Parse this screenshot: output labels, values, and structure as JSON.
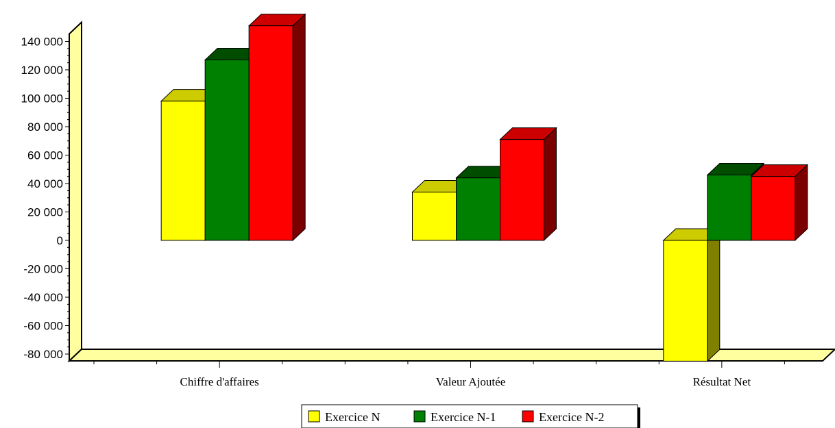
{
  "chart_data": {
    "type": "bar",
    "title": "",
    "xlabel": "",
    "ylabel": "",
    "ylim": [
      -80000,
      140000
    ],
    "yticks": [
      140000,
      120000,
      100000,
      80000,
      60000,
      40000,
      20000,
      0,
      -20000,
      -40000,
      -60000,
      -80000
    ],
    "ytick_labels": [
      "140 000",
      "120 000",
      "100 000",
      "80 000",
      "60 000",
      "40 000",
      "20 000",
      "0",
      "-20 000",
      "-40 000",
      "-60 000",
      "-80 000"
    ],
    "categories": [
      "Chiffre d'affaires",
      "Valeur Ajoutée",
      "Résultat Net"
    ],
    "series": [
      {
        "name": "Exercice N",
        "values": [
          98000,
          34000,
          -85000
        ]
      },
      {
        "name": "Exercice N-1",
        "values": [
          127000,
          44000,
          46000
        ]
      },
      {
        "name": "Exercice N-2",
        "values": [
          151000,
          71000,
          45000
        ]
      }
    ],
    "grid": false,
    "legend_position": "bottom",
    "style": "3d"
  },
  "colors": {
    "series": [
      {
        "front": "#ffff00",
        "top": "#cccc00",
        "side": "#808000"
      },
      {
        "front": "#008000",
        "top": "#004d00",
        "side": "#003300"
      },
      {
        "front": "#ff0000",
        "top": "#cc0000",
        "side": "#7a0000"
      }
    ],
    "wall": "#ffffa0",
    "wall_edge": "#000000"
  }
}
